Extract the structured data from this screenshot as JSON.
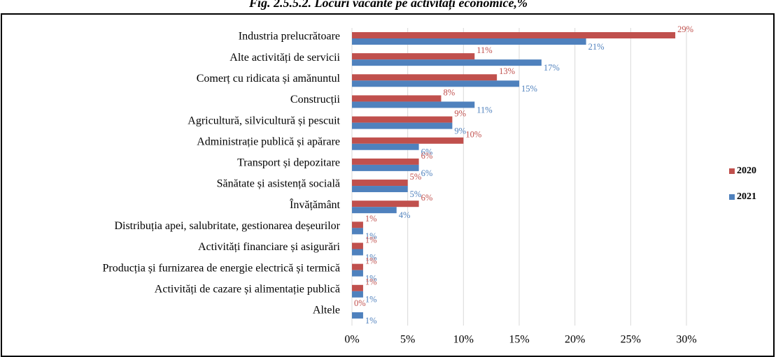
{
  "chart_data": {
    "type": "bar",
    "orientation": "horizontal",
    "title": "Fig. 2.5.5.2. Locuri vacante pe activități economice,%",
    "categories": [
      "Industria prelucrătoare",
      "Alte activități de servicii",
      "Comerț cu ridicata și amănuntul",
      "Construcții",
      "Agricultură, silvicultură și pescuit",
      "Administrație publică și apărare",
      "Transport și depozitare",
      "Sănătate și asistență socială",
      "Învățământ",
      "Distribuția apei, salubritate, gestionarea deșeurilor",
      "Activități financiare și asigurări",
      "Producția și furnizarea de energie electrică și termică",
      "Activități de cazare și alimentație publică",
      "Altele"
    ],
    "series": [
      {
        "name": "2020",
        "color": "#c0504d",
        "values": [
          29,
          11,
          13,
          8,
          9,
          10,
          6,
          5,
          6,
          1,
          1,
          1,
          1,
          0
        ],
        "value_labels": [
          "29%",
          "11%",
          "13%",
          "8%",
          "9%",
          "10%",
          "6%",
          "5%",
          "6%",
          "1%",
          "1%",
          "1%",
          "1%",
          "0%"
        ]
      },
      {
        "name": "2021",
        "color": "#4f81bd",
        "values": [
          21,
          17,
          15,
          11,
          9,
          6,
          6,
          5,
          4,
          1,
          1,
          1,
          1,
          1
        ],
        "value_labels": [
          "21%",
          "17%",
          "15%",
          "11%",
          "9%",
          "6%",
          "6%",
          "5%",
          "4%",
          "1%",
          "1%",
          "1%",
          "1%",
          "1%"
        ]
      }
    ],
    "xlim": [
      0,
      30
    ],
    "xticks": [
      {
        "value": 0,
        "label": "0%"
      },
      {
        "value": 5,
        "label": "5%"
      },
      {
        "value": 10,
        "label": "10%"
      },
      {
        "value": 15,
        "label": "15%"
      },
      {
        "value": 20,
        "label": "20%"
      },
      {
        "value": 25,
        "label": "25%"
      },
      {
        "value": 30,
        "label": "30%"
      }
    ],
    "grid": true,
    "legend": "right"
  }
}
